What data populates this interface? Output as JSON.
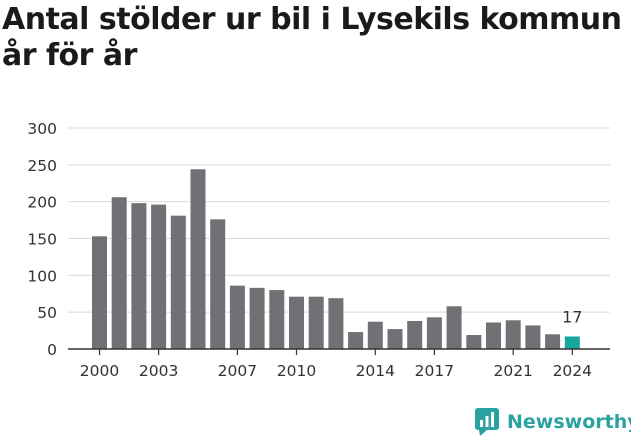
{
  "title_lines": [
    "Antal stölder ur bil i Lysekils kommun",
    "år för år"
  ],
  "brand": "Newsworthy",
  "colors": {
    "bar": "#727075",
    "highlight": "#16a99b",
    "grid": "#d9d9d9",
    "axis": "#333333",
    "text": "#333333"
  },
  "chart_data": {
    "type": "bar",
    "title": "Antal stölder ur bil i Lysekils kommun år för år",
    "categories": [
      "2000",
      "2001",
      "2002",
      "2003",
      "2004",
      "2005",
      "2006",
      "2007",
      "2008",
      "2009",
      "2010",
      "2011",
      "2012",
      "2013",
      "2014",
      "2015",
      "2016",
      "2017",
      "2018",
      "2019",
      "2020",
      "2021",
      "2022",
      "2023",
      "2024"
    ],
    "values": [
      153,
      206,
      198,
      196,
      181,
      244,
      176,
      86,
      83,
      80,
      71,
      71,
      69,
      23,
      37,
      27,
      38,
      43,
      58,
      19,
      36,
      39,
      32,
      20,
      17
    ],
    "highlight_index": 24,
    "data_labels": [
      {
        "index": 24,
        "text": "17"
      }
    ],
    "x_tick_labels": [
      "2000",
      "2003",
      "2007",
      "2010",
      "2014",
      "2017",
      "2021",
      "2024"
    ],
    "y_ticks": [
      0,
      50,
      100,
      150,
      200,
      250,
      300
    ],
    "ylim": [
      0,
      300
    ],
    "xlabel": "",
    "ylabel": "",
    "grid": true,
    "legend": "none"
  }
}
